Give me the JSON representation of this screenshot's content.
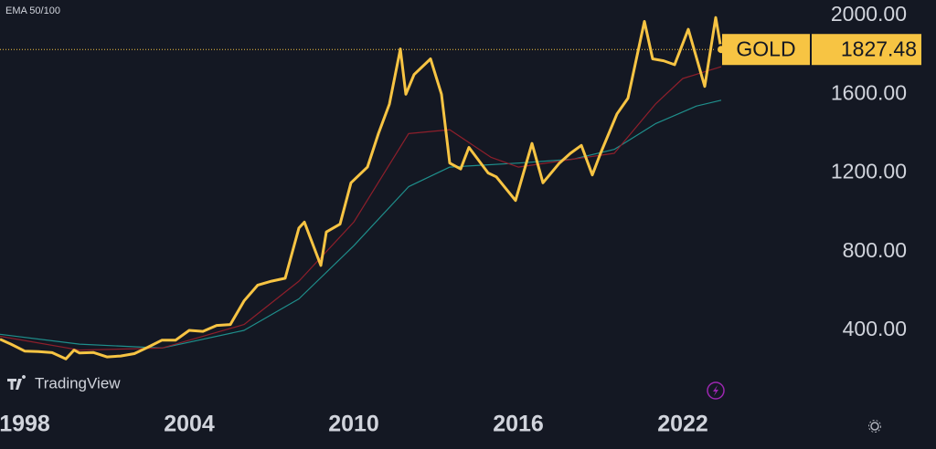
{
  "chart_data": {
    "type": "line",
    "indicator": "EMA 50/100",
    "brand": "TradingView",
    "symbol": "GOLD",
    "last_price": 1827.48,
    "xlim": [
      1997.1,
      2026.7
    ],
    "xticks": [
      1998,
      2004,
      2010,
      2016,
      2022
    ],
    "ylim": [
      -8,
      2079
    ],
    "yticks": [
      {
        "value": 400,
        "label": "400.00"
      },
      {
        "value": 800,
        "label": "800.00"
      },
      {
        "value": 1200,
        "label": "1200.00"
      },
      {
        "value": 1600,
        "label": "1600.00"
      },
      {
        "value": 2000,
        "label": "2000.00"
      }
    ],
    "series": [
      {
        "color": "#1f8f8c",
        "x": [
          1997.1,
          2000,
          2003,
          2006,
          2008,
          2010,
          2012,
          2013.5,
          2016,
          2018,
          2019.5,
          2021,
          2022.5,
          2023.4
        ],
        "values": [
          380,
          330,
          310,
          400,
          560,
          830,
          1130,
          1230,
          1250,
          1270,
          1320,
          1450,
          1540,
          1570
        ]
      },
      {
        "color": "#8e1f2b",
        "x": [
          1997.1,
          2000,
          2003,
          2006,
          2008,
          2010,
          2012,
          2013.5,
          2015,
          2016,
          2018,
          2019.5,
          2021,
          2022,
          2023.4
        ],
        "values": [
          370,
          300,
          310,
          430,
          650,
          950,
          1400,
          1420,
          1280,
          1230,
          1270,
          1300,
          1550,
          1680,
          1740
        ]
      },
      {
        "name": "GOLD",
        "color": "#f7c443",
        "x": [
          1997.1,
          1997.5,
          1998,
          1998.5,
          1999,
          1999.5,
          1999.8,
          2000,
          2000.5,
          2001,
          2001.5,
          2002,
          2002.5,
          2003,
          2003.5,
          2004,
          2004.5,
          2005,
          2005.5,
          2006,
          2006.5,
          2007,
          2007.5,
          2008,
          2008.2,
          2008.8,
          2009,
          2009.5,
          2009.9,
          2010.5,
          2010.9,
          2011.3,
          2011.7,
          2011.9,
          2012.2,
          2012.8,
          2013.2,
          2013.5,
          2013.9,
          2014.2,
          2014.9,
          2015.2,
          2015.9,
          2016.5,
          2016.9,
          2017.5,
          2017.9,
          2018.3,
          2018.7,
          2019,
          2019.6,
          2020,
          2020.6,
          2020.9,
          2021.3,
          2021.7,
          2022.2,
          2022.8,
          2023.2,
          2023.4
        ],
        "values": [
          355,
          330,
          295,
          292,
          287,
          255,
          300,
          285,
          288,
          265,
          270,
          282,
          315,
          350,
          350,
          400,
          395,
          425,
          430,
          550,
          630,
          650,
          665,
          920,
          950,
          730,
          900,
          940,
          1150,
          1230,
          1400,
          1550,
          1830,
          1600,
          1700,
          1780,
          1600,
          1250,
          1220,
          1330,
          1200,
          1180,
          1060,
          1350,
          1150,
          1250,
          1300,
          1340,
          1190,
          1300,
          1500,
          1580,
          1970,
          1780,
          1770,
          1750,
          1930,
          1640,
          1990,
          1827.48
        ]
      }
    ]
  }
}
